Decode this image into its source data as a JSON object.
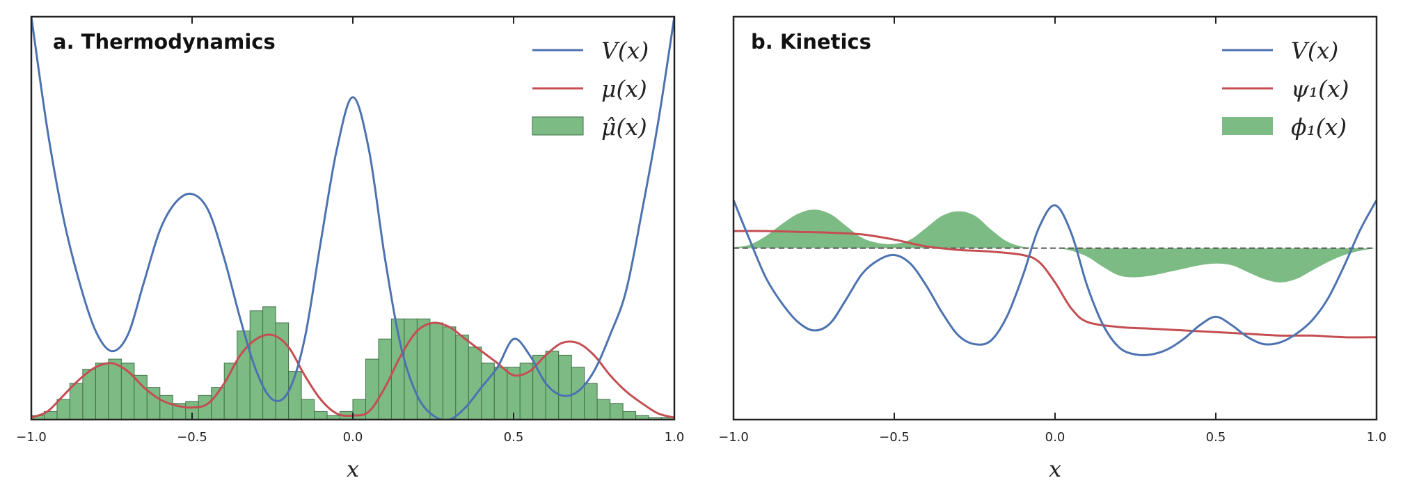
{
  "chart_data": [
    {
      "type": "line",
      "title": "a. Thermodynamics",
      "xlabel": "x",
      "xlim": [
        -1.0,
        1.0
      ],
      "x_ticks": [
        "−1.0",
        "−0.5",
        "0.0",
        "0.5",
        "1.0"
      ],
      "y_ticks_shown": false,
      "legend_position": "top-right",
      "legend": [
        "V(x)",
        "μ(x)",
        "μ̂(x)"
      ],
      "colors": {
        "V": "#4c72b0",
        "mu": "#c44e52",
        "hist": "#55a868"
      },
      "series": [
        {
          "name": "V(x)",
          "x": [
            -1.0,
            -0.95,
            -0.9,
            -0.85,
            -0.8,
            -0.75,
            -0.7,
            -0.65,
            -0.6,
            -0.55,
            -0.5,
            -0.45,
            -0.4,
            -0.35,
            -0.3,
            -0.25,
            -0.2,
            -0.15,
            -0.1,
            -0.05,
            0.0,
            0.05,
            0.1,
            0.15,
            0.2,
            0.25,
            0.3,
            0.35,
            0.4,
            0.45,
            0.5,
            0.55,
            0.6,
            0.65,
            0.7,
            0.75,
            0.8,
            0.85,
            0.9,
            0.95,
            1.0
          ],
          "y": [
            1.0,
            0.72,
            0.5,
            0.34,
            0.22,
            0.17,
            0.21,
            0.34,
            0.47,
            0.54,
            0.56,
            0.52,
            0.4,
            0.25,
            0.12,
            0.05,
            0.07,
            0.2,
            0.44,
            0.67,
            0.8,
            0.67,
            0.4,
            0.18,
            0.06,
            0.01,
            0.0,
            0.03,
            0.08,
            0.13,
            0.2,
            0.16,
            0.09,
            0.06,
            0.07,
            0.12,
            0.21,
            0.32,
            0.52,
            0.74,
            1.0
          ]
        },
        {
          "name": "μ(x)",
          "x": [
            -1.0,
            -0.95,
            -0.9,
            -0.85,
            -0.8,
            -0.75,
            -0.7,
            -0.65,
            -0.6,
            -0.55,
            -0.5,
            -0.45,
            -0.4,
            -0.35,
            -0.3,
            -0.25,
            -0.2,
            -0.15,
            -0.1,
            -0.05,
            0.0,
            0.05,
            0.1,
            0.15,
            0.2,
            0.25,
            0.3,
            0.35,
            0.4,
            0.45,
            0.5,
            0.55,
            0.6,
            0.65,
            0.7,
            0.75,
            0.8,
            0.85,
            0.9,
            0.95,
            1.0
          ],
          "y": [
            0.005,
            0.02,
            0.06,
            0.1,
            0.13,
            0.14,
            0.12,
            0.08,
            0.05,
            0.035,
            0.03,
            0.04,
            0.09,
            0.16,
            0.2,
            0.21,
            0.18,
            0.11,
            0.05,
            0.015,
            0.01,
            0.02,
            0.08,
            0.16,
            0.22,
            0.24,
            0.23,
            0.2,
            0.17,
            0.14,
            0.11,
            0.12,
            0.16,
            0.19,
            0.19,
            0.16,
            0.11,
            0.07,
            0.04,
            0.015,
            0.005
          ]
        },
        {
          "name": "μ̂(x)",
          "type": "histogram",
          "bin_edges_from": -1.0,
          "bin_width": 0.04,
          "values": [
            0.01,
            0.02,
            0.05,
            0.09,
            0.125,
            0.14,
            0.15,
            0.14,
            0.11,
            0.08,
            0.06,
            0.04,
            0.045,
            0.06,
            0.08,
            0.14,
            0.22,
            0.27,
            0.28,
            0.24,
            0.12,
            0.05,
            0.02,
            0.01,
            0.02,
            0.05,
            0.15,
            0.2,
            0.25,
            0.25,
            0.25,
            0.24,
            0.23,
            0.21,
            0.18,
            0.14,
            0.13,
            0.13,
            0.14,
            0.16,
            0.17,
            0.16,
            0.13,
            0.09,
            0.05,
            0.04,
            0.02,
            0.01,
            0.005,
            0.005
          ]
        }
      ],
      "ylim": [
        0,
        1.0
      ]
    },
    {
      "type": "line",
      "title": "b. Kinetics",
      "xlabel": "x",
      "xlim": [
        -1.0,
        1.0
      ],
      "x_ticks": [
        "−1.0",
        "−0.5",
        "0.0",
        "0.5",
        "1.0"
      ],
      "y_ticks_shown": false,
      "legend_position": "top-right",
      "legend": [
        "V(x)",
        "ψ₁(x)",
        "ϕ₁(x)"
      ],
      "colors": {
        "V": "#4c72b0",
        "psi": "#c44e52",
        "phi": "#55a868",
        "zero": "#555555"
      },
      "series": [
        {
          "name": "V(x)",
          "x": [
            -1.0,
            -0.95,
            -0.9,
            -0.85,
            -0.8,
            -0.75,
            -0.7,
            -0.65,
            -0.6,
            -0.55,
            -0.5,
            -0.45,
            -0.4,
            -0.35,
            -0.3,
            -0.25,
            -0.2,
            -0.15,
            -0.1,
            -0.05,
            0.0,
            0.05,
            0.1,
            0.15,
            0.2,
            0.25,
            0.3,
            0.35,
            0.4,
            0.45,
            0.5,
            0.55,
            0.6,
            0.65,
            0.7,
            0.75,
            0.8,
            0.85,
            0.9,
            0.95,
            1.0
          ],
          "y": [
            0.28,
            0.05,
            -0.17,
            -0.32,
            -0.43,
            -0.48,
            -0.44,
            -0.3,
            -0.15,
            -0.07,
            -0.04,
            -0.09,
            -0.22,
            -0.38,
            -0.51,
            -0.56,
            -0.54,
            -0.4,
            -0.16,
            0.12,
            0.25,
            0.09,
            -0.22,
            -0.45,
            -0.58,
            -0.62,
            -0.62,
            -0.59,
            -0.53,
            -0.45,
            -0.4,
            -0.45,
            -0.52,
            -0.56,
            -0.55,
            -0.5,
            -0.42,
            -0.29,
            -0.1,
            0.11,
            0.28
          ]
        },
        {
          "name": "ψ₁(x)",
          "x": [
            -1.0,
            -0.9,
            -0.8,
            -0.7,
            -0.6,
            -0.5,
            -0.4,
            -0.3,
            -0.25,
            -0.2,
            -0.1,
            -0.05,
            0.0,
            0.05,
            0.1,
            0.2,
            0.3,
            0.4,
            0.5,
            0.6,
            0.7,
            0.8,
            0.9,
            1.0
          ],
          "y": [
            0.1,
            0.1,
            0.095,
            0.09,
            0.08,
            0.05,
            0.01,
            -0.01,
            -0.015,
            -0.02,
            -0.04,
            -0.08,
            -0.2,
            -0.35,
            -0.43,
            -0.46,
            -0.47,
            -0.48,
            -0.49,
            -0.5,
            -0.51,
            -0.51,
            -0.52,
            -0.52
          ]
        },
        {
          "name": "ϕ₁(x)",
          "type": "area",
          "x": [
            -1.0,
            -0.95,
            -0.9,
            -0.85,
            -0.8,
            -0.75,
            -0.7,
            -0.65,
            -0.6,
            -0.55,
            -0.5,
            -0.45,
            -0.4,
            -0.35,
            -0.3,
            -0.25,
            -0.2,
            -0.15,
            -0.1,
            -0.05,
            0.0,
            0.05,
            0.1,
            0.15,
            0.2,
            0.25,
            0.3,
            0.35,
            0.4,
            0.45,
            0.5,
            0.55,
            0.6,
            0.65,
            0.7,
            0.75,
            0.8,
            0.85,
            0.9,
            0.95,
            1.0
          ],
          "y": [
            0.005,
            0.02,
            0.07,
            0.14,
            0.2,
            0.225,
            0.2,
            0.13,
            0.06,
            0.03,
            0.025,
            0.05,
            0.12,
            0.19,
            0.215,
            0.19,
            0.11,
            0.04,
            0.008,
            0.0,
            0.0,
            -0.015,
            -0.05,
            -0.11,
            -0.16,
            -0.17,
            -0.16,
            -0.14,
            -0.12,
            -0.1,
            -0.09,
            -0.1,
            -0.14,
            -0.18,
            -0.2,
            -0.18,
            -0.13,
            -0.08,
            -0.04,
            -0.015,
            0.0
          ]
        }
      ],
      "ylim": [
        -1.0,
        1.35
      ]
    }
  ]
}
